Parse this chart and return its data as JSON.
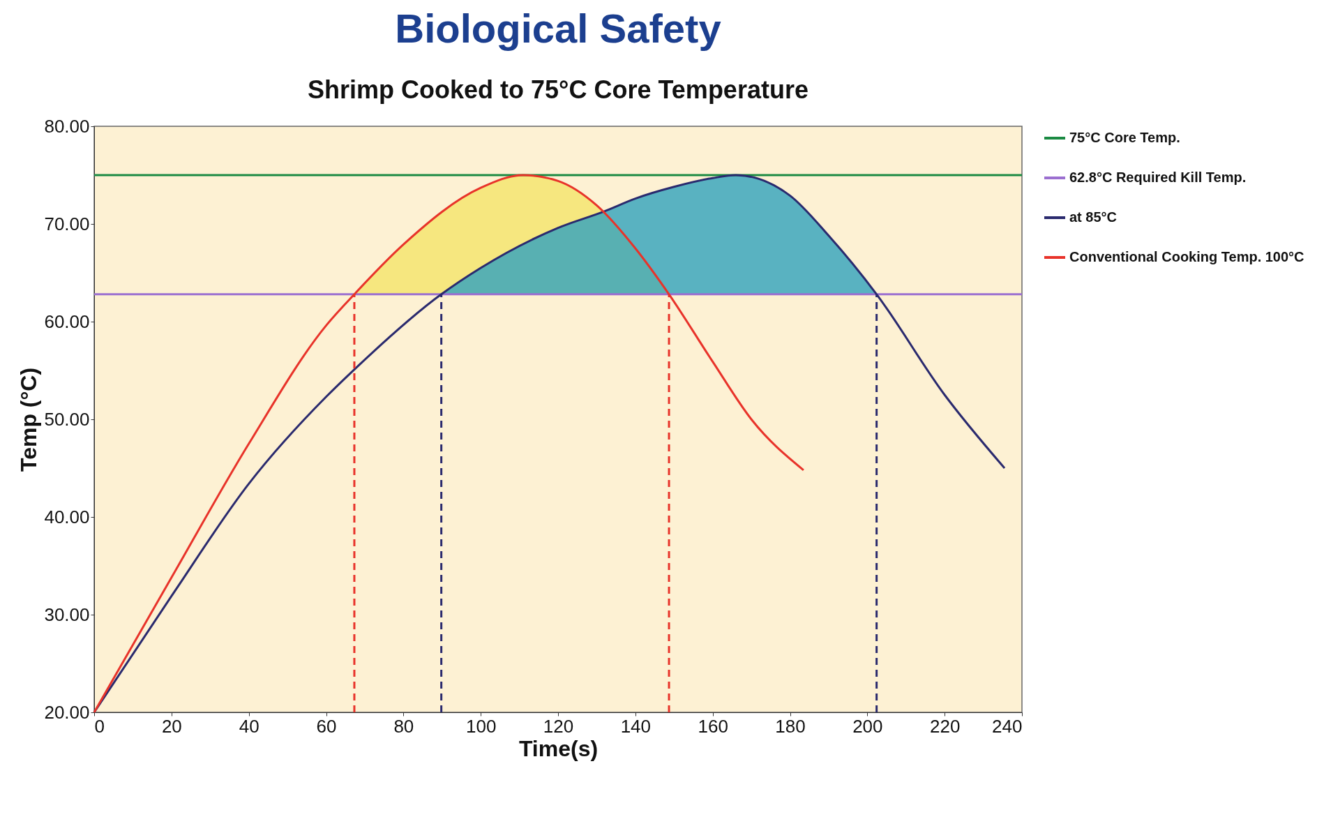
{
  "chart_data": {
    "type": "line",
    "title": "Biological Safety",
    "subtitle": "Shrimp Cooked to 75°C Core Temperature",
    "xlabel": "Time(s)",
    "ylabel": "Temp (°C)",
    "xlim": [
      0,
      240
    ],
    "xticks": [
      0,
      20,
      40,
      60,
      80,
      100,
      120,
      140,
      160,
      180,
      200,
      220,
      240
    ],
    "ylim": [
      20,
      80
    ],
    "yticks": [
      {
        "value": 20,
        "label": "20.00"
      },
      {
        "value": 30,
        "label": "30.00"
      },
      {
        "value": 40,
        "label": "40.00"
      },
      {
        "value": 50,
        "label": "50.00"
      },
      {
        "value": 60,
        "label": "60.00"
      },
      {
        "value": 70,
        "label": "70.00"
      },
      {
        "value": 80,
        "label": "80.00"
      }
    ],
    "grid": false,
    "legend": "right",
    "ref_lines": [
      {
        "axis": "y",
        "value": 75,
        "label": "75°C Core Temp.",
        "color": "#1b8a43"
      },
      {
        "axis": "y",
        "value": 62.8,
        "label": "62.8°C Required Kill Temp.",
        "color": "#9b6fd0"
      }
    ],
    "series": [
      {
        "type": "area",
        "color": "#f6e77f",
        "x": [
          67.3,
          80,
          100,
          111,
          120,
          130,
          140,
          148.7
        ],
        "values": [
          62.8,
          67.9,
          73.7,
          75,
          74.4,
          71.9,
          67.5,
          62.8
        ]
      },
      {
        "type": "area",
        "color": "#34a3bd",
        "x": [
          89.8,
          100,
          120,
          132,
          140,
          150,
          160,
          166,
          180,
          190,
          202.4
        ],
        "values": [
          62.8,
          65.5,
          69.6,
          71.3,
          72.6,
          73.8,
          74.7,
          75,
          72.9,
          68.8,
          62.8
        ]
      },
      {
        "type": "line",
        "name": "at 85°C",
        "color": "#2a2a6e",
        "line_style": "solid",
        "x": [
          0,
          20,
          40,
          60,
          67.3,
          89.8,
          100,
          120,
          132,
          140,
          150,
          160,
          166,
          180,
          190,
          202.4,
          220,
          235.5
        ],
        "values": [
          20,
          31.9,
          43.4,
          52.3,
          55.1,
          62.8,
          65.5,
          69.6,
          71.3,
          72.6,
          73.8,
          74.7,
          75,
          72.9,
          68.8,
          62.8,
          52.5,
          45
        ]
      },
      {
        "type": "line",
        "name": "Conventional Cooking Temp. 100°C",
        "color": "#e8332a",
        "line_style": "solid",
        "x": [
          0,
          20,
          40,
          60,
          67.3,
          80,
          100,
          111,
          120,
          130,
          140,
          148.7,
          160,
          170,
          183.5
        ],
        "values": [
          20,
          33.8,
          47.5,
          59.6,
          62.8,
          67.9,
          73.7,
          75,
          74.4,
          71.9,
          67.5,
          62.8,
          55.9,
          50,
          44.8
        ]
      },
      {
        "type": "line",
        "color": "#e8332a",
        "line_style": "dashed",
        "x": [
          67.3,
          67.3
        ],
        "values": [
          20,
          62.8
        ]
      },
      {
        "type": "line",
        "color": "#2a2a6e",
        "line_style": "dashed",
        "x": [
          89.8,
          89.8
        ],
        "values": [
          20,
          62.8
        ]
      },
      {
        "type": "line",
        "color": "#e8332a",
        "line_style": "dashed",
        "x": [
          148.7,
          148.7
        ],
        "values": [
          20,
          62.8
        ]
      },
      {
        "type": "line",
        "color": "#2a2a6e",
        "line_style": "dashed",
        "x": [
          202.4,
          202.4
        ],
        "values": [
          20,
          62.8
        ]
      }
    ]
  }
}
